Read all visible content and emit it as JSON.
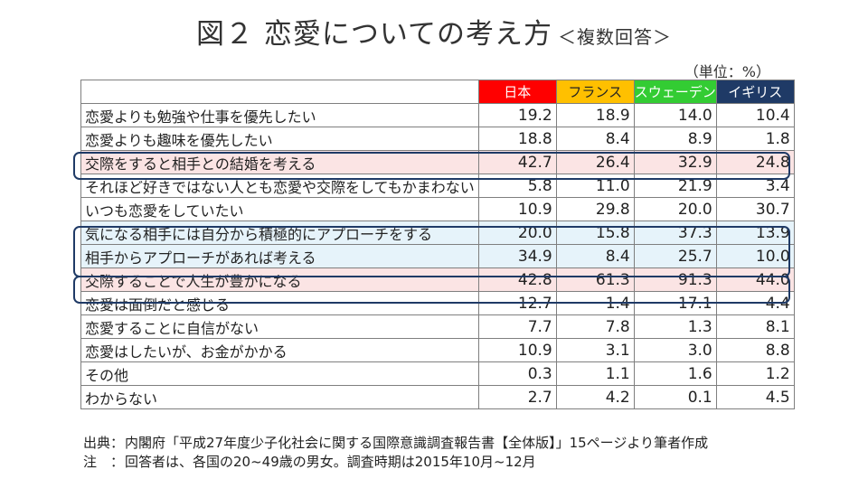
{
  "title": {
    "main": "図２ 恋愛についての考え方",
    "sub": "＜複数回答＞"
  },
  "unit": "（単位：%）",
  "columns": [
    {
      "label": "日本",
      "bg": "#ff0000",
      "fg": "#ffffff"
    },
    {
      "label": "フランス",
      "bg": "#ffc000",
      "fg": "#222222"
    },
    {
      "label": "スウェーデン",
      "bg": "#33cc33",
      "fg": "#ffffff"
    },
    {
      "label": "イギリス",
      "bg": "#1f3a66",
      "fg": "#ffffff"
    }
  ],
  "rows": [
    {
      "label": "恋愛よりも勉強や仕事を優先したい",
      "values": [
        "19.2",
        "18.9",
        "14.0",
        "10.4"
      ],
      "highlight": ""
    },
    {
      "label": "恋愛よりも趣味を優先したい",
      "values": [
        "18.8",
        "8.4",
        "8.9",
        "1.8"
      ],
      "highlight": ""
    },
    {
      "label": "交際をすると相手との結婚を考える",
      "values": [
        "42.7",
        "26.4",
        "32.9",
        "24.8"
      ],
      "highlight": "pink"
    },
    {
      "label": "それほど好きではない人とも恋愛や交際をしてもかまわない",
      "values": [
        "5.8",
        "11.0",
        "21.9",
        "3.4"
      ],
      "highlight": ""
    },
    {
      "label": "いつも恋愛をしていたい",
      "values": [
        "10.9",
        "29.8",
        "20.0",
        "30.7"
      ],
      "highlight": ""
    },
    {
      "label": "気になる相手には自分から積極的にアプローチをする",
      "values": [
        "20.0",
        "15.8",
        "37.3",
        "13.9"
      ],
      "highlight": "blue"
    },
    {
      "label": "相手からアプローチがあれば考える",
      "values": [
        "34.9",
        "8.4",
        "25.7",
        "10.0"
      ],
      "highlight": "blue"
    },
    {
      "label": "交際することで人生が豊かになる",
      "values": [
        "42.8",
        "61.3",
        "91.3",
        "44.0"
      ],
      "highlight": "pink"
    },
    {
      "label": "恋愛は面倒だと感じる",
      "values": [
        "12.7",
        "1.4",
        "17.1",
        "4.4"
      ],
      "highlight": ""
    },
    {
      "label": "恋愛することに自信がない",
      "values": [
        "7.7",
        "7.8",
        "1.3",
        "8.1"
      ],
      "highlight": ""
    },
    {
      "label": "恋愛はしたいが、お金がかかる",
      "values": [
        "10.9",
        "3.1",
        "3.0",
        "8.8"
      ],
      "highlight": ""
    },
    {
      "label": "その他",
      "values": [
        "0.3",
        "1.1",
        "1.6",
        "1.2"
      ],
      "highlight": ""
    },
    {
      "label": "わからない",
      "values": [
        "2.7",
        "4.2",
        "0.1",
        "4.5"
      ],
      "highlight": ""
    }
  ],
  "notes": {
    "source_label": "出典：",
    "source_text": "内閣府「平成27年度少子化社会に関する国際意識調査報告書【全体版】」15ページより筆者作成",
    "note_label": "注　：",
    "note_text": "回答者は、各国の20~49歳の男女。調査時期は2015年10月~12月"
  }
}
